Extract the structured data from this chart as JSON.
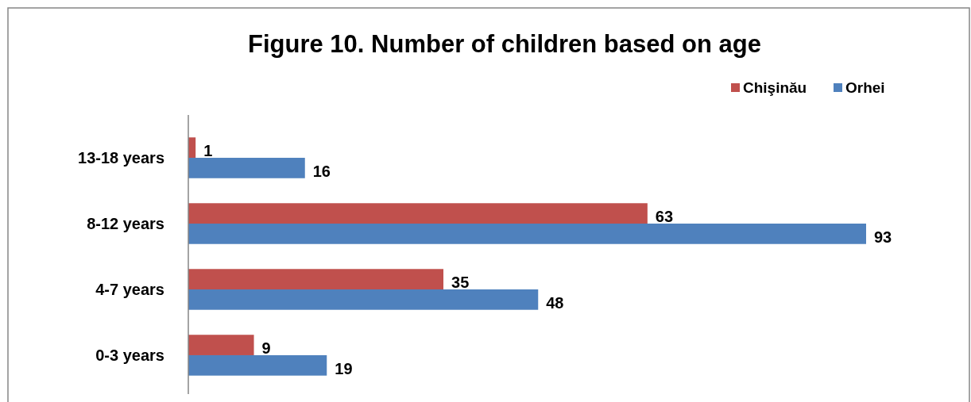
{
  "chart_data": {
    "type": "bar",
    "orientation": "horizontal",
    "title": "Figure 10. Number of children based on age",
    "categories": [
      "13-18 years",
      "8-12 years",
      "4-7 years",
      "0-3 years"
    ],
    "series": [
      {
        "name": "Chişinău",
        "color": "#c0504d",
        "values": [
          1,
          63,
          35,
          9
        ]
      },
      {
        "name": "Orhei",
        "color": "#4f81bd",
        "values": [
          16,
          93,
          48,
          19
        ]
      }
    ],
    "data_labels": true,
    "legend": "top right"
  }
}
